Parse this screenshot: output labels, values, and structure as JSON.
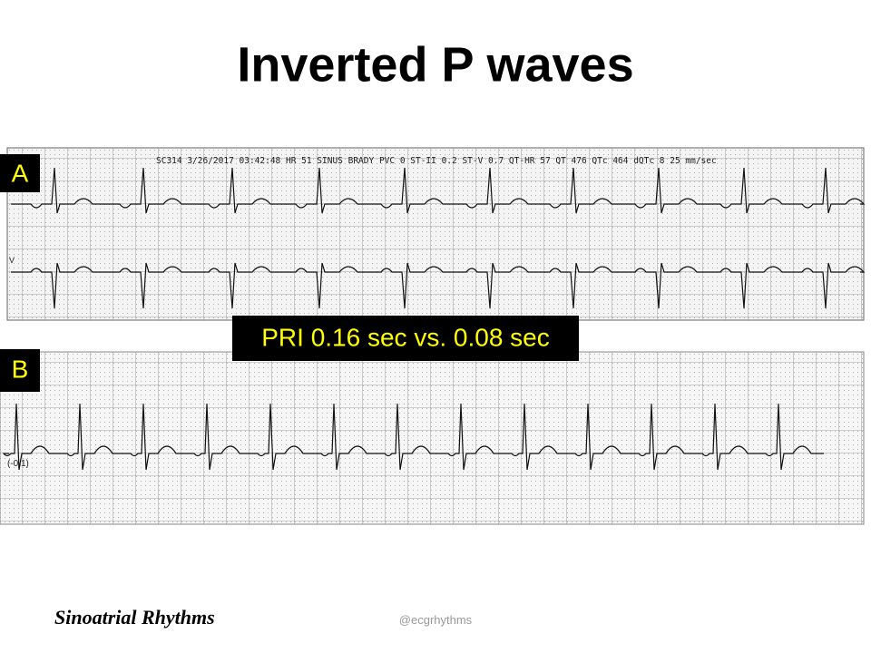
{
  "title": "Inverted P waves",
  "panels": [
    {
      "label": "A",
      "strip_header": "SC314 3/26/2017 03:42:48  HR 51  SINUS BRADY  PVC 0  ST-II 0.2  ST-V 0.7  QT-HR 57  QT 476  QTc 464  dQTc 8  25 mm/sec",
      "lead_label": "V"
    },
    {
      "label": "B",
      "lead_label": "(-0.1)"
    }
  ],
  "comparison": "PRI 0.16 sec vs. 0.08 sec",
  "footer": {
    "left": "Sinoatrial Rhythms",
    "right": "@ecgrhythms"
  }
}
